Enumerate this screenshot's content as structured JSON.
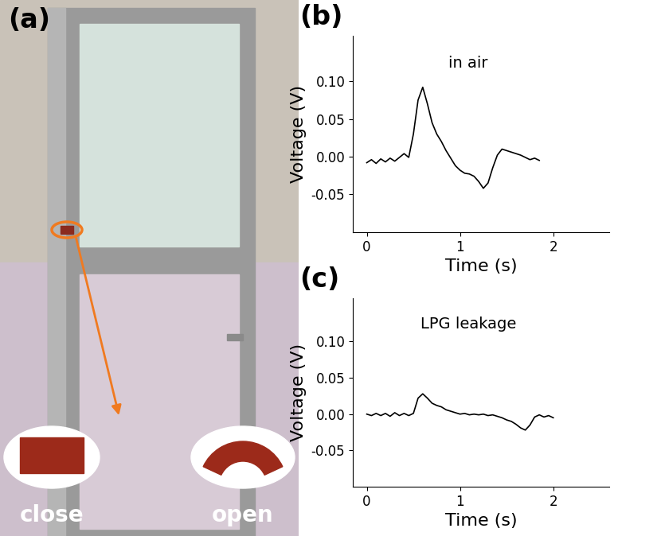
{
  "panel_a": {
    "label": "(a)",
    "captions": [
      "close",
      "open"
    ]
  },
  "chart_data": [
    {
      "type": "line",
      "panel": "(b)",
      "annotations": [
        "in air"
      ],
      "x_label": "Time (s)",
      "y_label": "Voltage (V)",
      "color": "#000000",
      "x": [
        0,
        0.05,
        0.1,
        0.15,
        0.2,
        0.25,
        0.3,
        0.35,
        0.4,
        0.45,
        0.5,
        0.55,
        0.6,
        0.65,
        0.7,
        0.75,
        0.8,
        0.85,
        0.9,
        0.95,
        1.0,
        1.05,
        1.1,
        1.15,
        1.2,
        1.25,
        1.3,
        1.35,
        1.4,
        1.45,
        1.5,
        1.55,
        1.6,
        1.65,
        1.7,
        1.75,
        1.8,
        1.85
      ],
      "values": [
        -0.008,
        -0.004,
        -0.009,
        -0.003,
        -0.007,
        -0.002,
        -0.006,
        -0.001,
        0.004,
        -0.001,
        0.03,
        0.075,
        0.092,
        0.07,
        0.045,
        0.03,
        0.02,
        0.008,
        -0.002,
        -0.012,
        -0.018,
        -0.022,
        -0.023,
        -0.026,
        -0.033,
        -0.042,
        -0.035,
        -0.015,
        0.002,
        0.01,
        0.008,
        0.006,
        0.004,
        0.002,
        -0.001,
        -0.004,
        -0.002,
        -0.005
      ],
      "xlim": [
        -0.15,
        2.6
      ],
      "xticks": [
        0,
        1,
        2
      ],
      "ylim": [
        -0.1,
        0.16
      ],
      "yticks": [
        {
          "value": -0.05,
          "label": "-0.05"
        },
        {
          "value": 0.0,
          "label": "0.00"
        },
        {
          "value": 0.05,
          "label": "0.05"
        },
        {
          "value": 0.1,
          "label": "0.10"
        }
      ]
    },
    {
      "type": "line",
      "panel": "(c)",
      "annotations": [
        "LPG leakage"
      ],
      "x_label": "Time (s)",
      "y_label": "Voltage (V)",
      "color": "#000000",
      "x": [
        0,
        0.05,
        0.1,
        0.15,
        0.2,
        0.25,
        0.3,
        0.35,
        0.4,
        0.45,
        0.5,
        0.55,
        0.6,
        0.65,
        0.7,
        0.75,
        0.8,
        0.85,
        0.9,
        0.95,
        1.0,
        1.05,
        1.1,
        1.15,
        1.2,
        1.25,
        1.3,
        1.35,
        1.4,
        1.45,
        1.5,
        1.55,
        1.6,
        1.65,
        1.7,
        1.75,
        1.8,
        1.85,
        1.9,
        1.95,
        2.0
      ],
      "values": [
        0.0,
        -0.002,
        0.001,
        -0.002,
        0.001,
        -0.003,
        0.002,
        -0.002,
        0.001,
        -0.002,
        0.001,
        0.022,
        0.028,
        0.022,
        0.015,
        0.012,
        0.01,
        0.006,
        0.004,
        0.002,
        0.0,
        0.001,
        -0.001,
        0.0,
        -0.001,
        0.0,
        -0.002,
        -0.001,
        -0.003,
        -0.005,
        -0.008,
        -0.01,
        -0.014,
        -0.019,
        -0.022,
        -0.015,
        -0.004,
        -0.001,
        -0.004,
        -0.002,
        -0.005
      ],
      "xlim": [
        -0.15,
        2.6
      ],
      "xticks": [
        0,
        1,
        2
      ],
      "ylim": [
        -0.1,
        0.16
      ],
      "yticks": [
        {
          "value": -0.05,
          "label": "-0.05"
        },
        {
          "value": 0.0,
          "label": "0.00"
        },
        {
          "value": 0.05,
          "label": "0.05"
        },
        {
          "value": 0.1,
          "label": "0.10"
        }
      ]
    }
  ]
}
